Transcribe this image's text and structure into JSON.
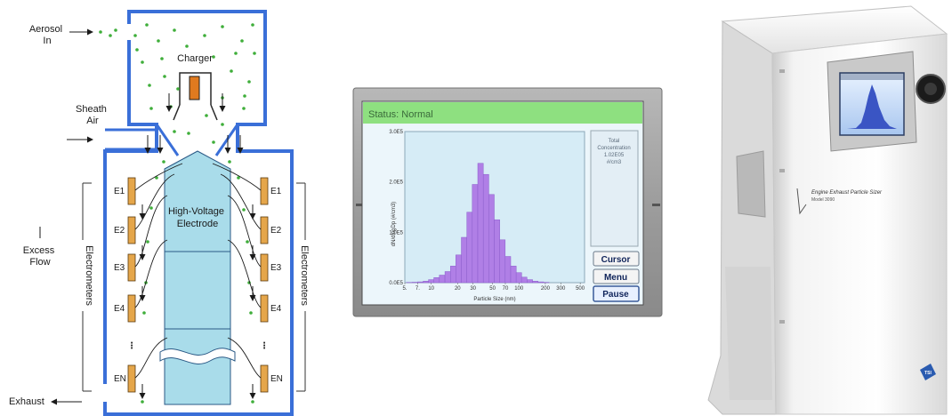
{
  "diagram": {
    "aerosol_in": "Aerosol In",
    "charger": "Charger",
    "sheath_air": "Sheath Air",
    "electrode": "High-Voltage Electrode",
    "excess_flow": "Excess Flow",
    "electrometers": "Electrometers",
    "exhaust": "Exhaust",
    "left_electrodes": [
      "E1",
      "E2",
      "E3",
      "E4",
      "EN"
    ],
    "right_electrodes": [
      "E1",
      "E2",
      "E3",
      "E4",
      "EN"
    ],
    "dots": "⋮",
    "colors": {
      "housing": "#3a6fd8",
      "electrode": "#a9dcea",
      "particle": "#3fae3a",
      "electrometer": "#e5a64a",
      "charger": "#e07a1f"
    }
  },
  "screen": {
    "status": "Status: Normal",
    "side_panel": [
      "Total",
      "Concentration",
      "1.02E05",
      "#/cm3"
    ],
    "buttons": {
      "cursor": "Cursor",
      "menu": "Menu",
      "pause": "Pause"
    },
    "colors": {
      "bar": "#b07fe6",
      "header": "#8ee080",
      "plot_bg": "#d6ecf6"
    }
  },
  "chart_data": {
    "type": "bar",
    "xlabel": "Particle Size (nm)",
    "ylabel": "dN/dlogDp (#/cm3)",
    "y_ticks": [
      "3.0E5",
      "2.0E5",
      "1.0E5",
      "0.0E5"
    ],
    "x_ticks": [
      "5.",
      "7.",
      "10",
      "20",
      "30",
      "50",
      "70",
      "100",
      "200",
      "300",
      "500"
    ],
    "ylim": [
      0,
      300000
    ],
    "xlim_log": [
      5,
      560
    ],
    "bins": [
      {
        "x": 5.6,
        "y": 500
      },
      {
        "x": 6.5,
        "y": 800
      },
      {
        "x": 7.5,
        "y": 1500
      },
      {
        "x": 8.7,
        "y": 3000
      },
      {
        "x": 10,
        "y": 6000
      },
      {
        "x": 11.5,
        "y": 10000
      },
      {
        "x": 13.3,
        "y": 15000
      },
      {
        "x": 15.4,
        "y": 22000
      },
      {
        "x": 17.8,
        "y": 33000
      },
      {
        "x": 20.5,
        "y": 55000
      },
      {
        "x": 23.7,
        "y": 90000
      },
      {
        "x": 27.4,
        "y": 140000
      },
      {
        "x": 31.6,
        "y": 195000
      },
      {
        "x": 36.5,
        "y": 237000
      },
      {
        "x": 42.2,
        "y": 215000
      },
      {
        "x": 48.7,
        "y": 175000
      },
      {
        "x": 56.2,
        "y": 125000
      },
      {
        "x": 64.9,
        "y": 85000
      },
      {
        "x": 75,
        "y": 52000
      },
      {
        "x": 86.6,
        "y": 33000
      },
      {
        "x": 100,
        "y": 20000
      },
      {
        "x": 115,
        "y": 11000
      },
      {
        "x": 133,
        "y": 6000
      },
      {
        "x": 154,
        "y": 3000
      },
      {
        "x": 178,
        "y": 1500
      },
      {
        "x": 205,
        "y": 700
      }
    ]
  },
  "device": {
    "label_title": "Engine Exhaust Particle Sizer",
    "model": "Model 3090",
    "brand_mark": "TSI"
  }
}
